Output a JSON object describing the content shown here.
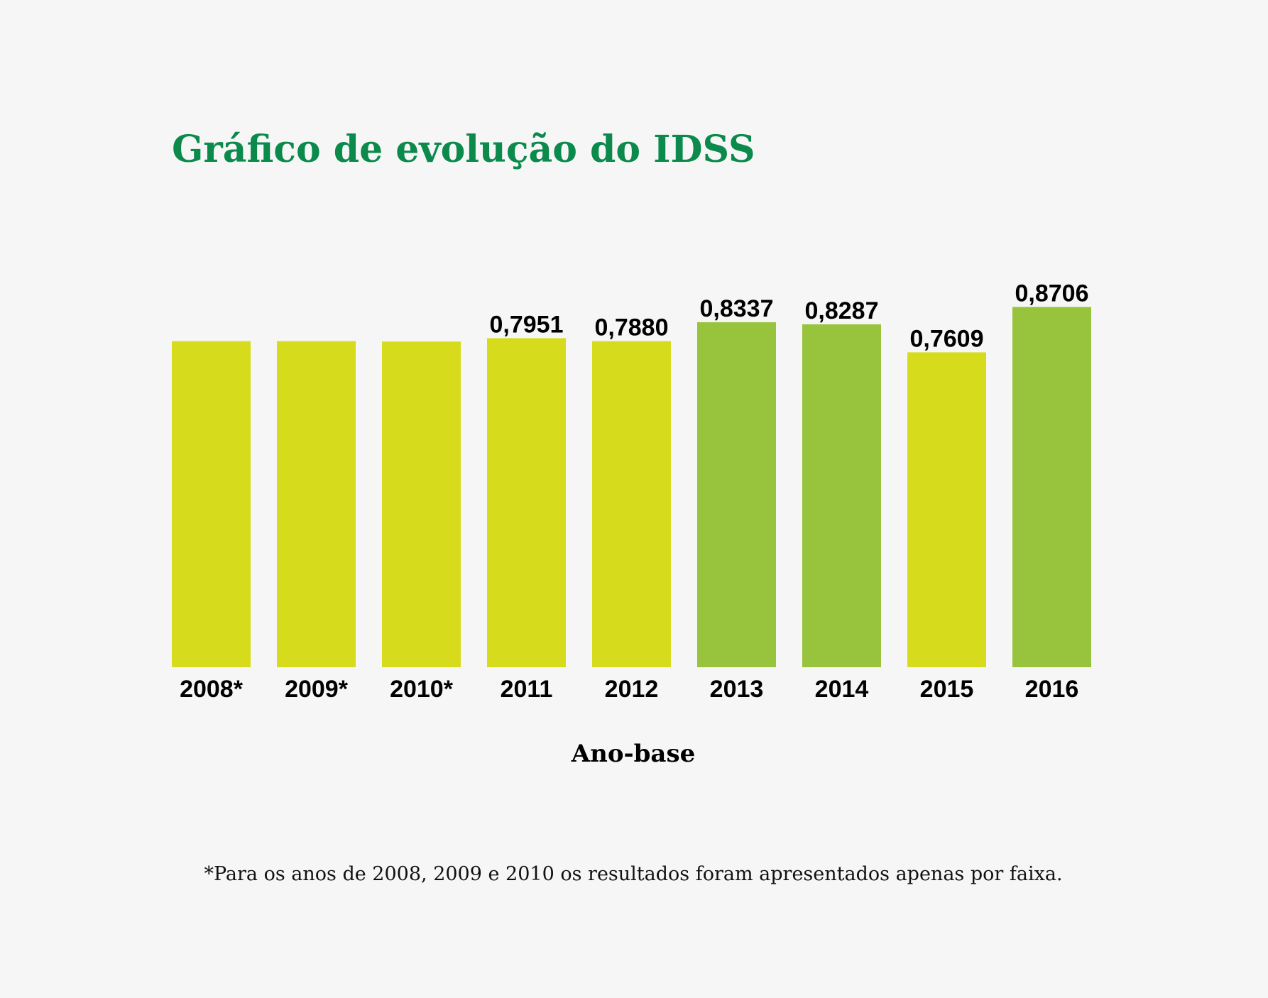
{
  "chart_data": {
    "type": "bar",
    "title": "Gráfico de evolução do IDSS",
    "xlabel": "Ano-base",
    "ylabel": "",
    "categories": [
      "2008*",
      "2009*",
      "2010*",
      "2011",
      "2012",
      "2013",
      "2014",
      "2015",
      "2016"
    ],
    "values": [
      0.788,
      0.788,
      0.787,
      0.7951,
      0.788,
      0.8337,
      0.8287,
      0.7609,
      0.8706
    ],
    "value_labels": [
      "",
      "",
      "",
      "0,7951",
      "0,7880",
      "0,8337",
      "0,8287",
      "0,7609",
      "0,8706"
    ],
    "bar_colors": [
      "#d6dc1c",
      "#d6dc1c",
      "#d6dc1c",
      "#d6dc1c",
      "#d6dc1c",
      "#97c33d",
      "#97c33d",
      "#d6dc1c",
      "#97c33d"
    ],
    "ylim": [
      0,
      1
    ],
    "grid": false,
    "legend": "none",
    "footnote": "*Para os anos de 2008, 2009 e 2010 os resultados foram apresentados apenas por faixa."
  },
  "colors": {
    "title": "#0b8a4c",
    "background": "#f6f6f6"
  }
}
